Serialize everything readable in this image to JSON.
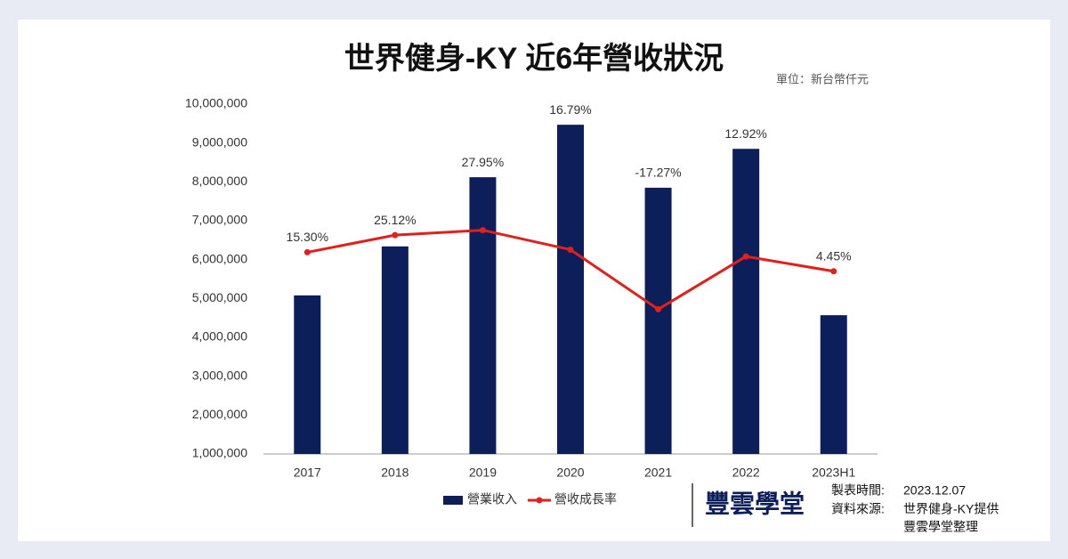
{
  "chart_data": {
    "type": "bar",
    "title": "世界健身-KY 近6年營收狀況",
    "unit": "單位：新台幣仟元",
    "categories": [
      "2017",
      "2018",
      "2019",
      "2020",
      "2021",
      "2022",
      "2023H1"
    ],
    "series": [
      {
        "name": "營業收入",
        "type": "bar",
        "color": "#0c1f5a",
        "values": [
          5080000,
          6340000,
          8120000,
          9470000,
          7850000,
          8850000,
          4570000
        ]
      },
      {
        "name": "營收成長率",
        "type": "line",
        "axis": "y2",
        "color": "#e0201b",
        "values": [
          15.3,
          25.12,
          27.95,
          16.79,
          -17.27,
          12.92,
          4.45
        ],
        "value_labels": [
          "15.30%",
          "25.12%",
          "27.95%",
          "16.79%",
          "-17.27%",
          "12.92%",
          "4.45%"
        ]
      }
    ],
    "ylim": [
      1000000,
      10000000
    ],
    "yticks": [
      {
        "value": 1000000,
        "label": "1,000,000"
      },
      {
        "value": 2000000,
        "label": "2,000,000"
      },
      {
        "value": 3000000,
        "label": "3,000,000"
      },
      {
        "value": 4000000,
        "label": "4,000,000"
      },
      {
        "value": 5000000,
        "label": "5,000,000"
      },
      {
        "value": 6000000,
        "label": "6,000,000"
      },
      {
        "value": 7000000,
        "label": "7,000,000"
      },
      {
        "value": 8000000,
        "label": "8,000,000"
      },
      {
        "value": 9000000,
        "label": "9,000,000"
      },
      {
        "value": 10000000,
        "label": "10,000,000"
      }
    ],
    "y2lim": [
      -100,
      100
    ],
    "legend": "bottom"
  },
  "footer": {
    "logo": "豐雲學堂",
    "date_label": "製表時間:",
    "date": "2023.12.07",
    "source_label": "資料來源:",
    "source": "世界健身-KY提供",
    "source2": "豐雲學堂整理"
  }
}
